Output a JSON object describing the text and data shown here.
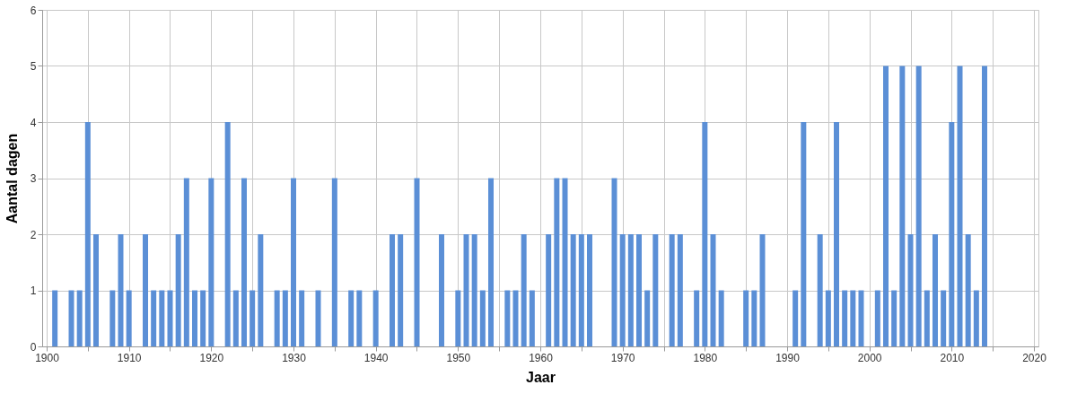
{
  "chart_data": {
    "type": "bar",
    "xlabel": "Jaar",
    "ylabel": "Aantal dagen",
    "x": [
      1901,
      1903,
      1904,
      1905,
      1906,
      1908,
      1909,
      1910,
      1912,
      1913,
      1914,
      1915,
      1916,
      1917,
      1918,
      1919,
      1920,
      1922,
      1923,
      1924,
      1925,
      1926,
      1928,
      1929,
      1930,
      1931,
      1933,
      1935,
      1937,
      1938,
      1940,
      1942,
      1943,
      1945,
      1948,
      1950,
      1951,
      1952,
      1953,
      1954,
      1956,
      1957,
      1958,
      1959,
      1961,
      1962,
      1963,
      1964,
      1965,
      1966,
      1969,
      1970,
      1971,
      1972,
      1973,
      1974,
      1976,
      1977,
      1979,
      1980,
      1981,
      1982,
      1985,
      1986,
      1987,
      1991,
      1992,
      1994,
      1995,
      1996,
      1997,
      1998,
      1999,
      2001,
      2002,
      2003,
      2004,
      2005,
      2006,
      2007,
      2008,
      2009,
      2010,
      2011,
      2012,
      2013,
      2014
    ],
    "values": [
      1,
      1,
      1,
      4,
      2,
      1,
      2,
      1,
      2,
      1,
      1,
      1,
      2,
      3,
      1,
      1,
      3,
      4,
      1,
      3,
      1,
      2,
      1,
      1,
      3,
      1,
      1,
      3,
      1,
      1,
      1,
      2,
      2,
      3,
      2,
      1,
      2,
      2,
      1,
      3,
      1,
      1,
      2,
      1,
      2,
      3,
      3,
      2,
      2,
      2,
      3,
      2,
      2,
      2,
      1,
      2,
      2,
      2,
      1,
      4,
      2,
      1,
      1,
      1,
      2,
      1,
      4,
      2,
      1,
      4,
      1,
      1,
      1,
      1,
      5,
      1,
      5,
      2,
      5,
      1,
      2,
      1,
      4,
      5,
      2,
      1,
      5
    ],
    "color": "#5b8fd6",
    "xlim": [
      1900,
      2020
    ],
    "xticks": [
      1900,
      {
        "value": 1905,
        "label": null
      },
      1910,
      {
        "value": 1915,
        "label": null
      },
      1920,
      {
        "value": 1925,
        "label": null
      },
      1930,
      {
        "value": 1935,
        "label": null
      },
      1940,
      {
        "value": 1945,
        "label": null
      },
      1950,
      {
        "value": 1955,
        "label": null
      },
      1960,
      {
        "value": 1965,
        "label": null
      },
      1970,
      {
        "value": 1975,
        "label": null
      },
      1980,
      {
        "value": 1985,
        "label": null
      },
      1990,
      {
        "value": 1995,
        "label": null
      },
      2000,
      {
        "value": 2005,
        "label": null
      },
      2010,
      {
        "value": 2015,
        "label": null
      },
      2020
    ],
    "ylim": [
      0,
      6
    ],
    "yticks": [
      0,
      1,
      2,
      3,
      4,
      5,
      6
    ],
    "grid": true
  }
}
